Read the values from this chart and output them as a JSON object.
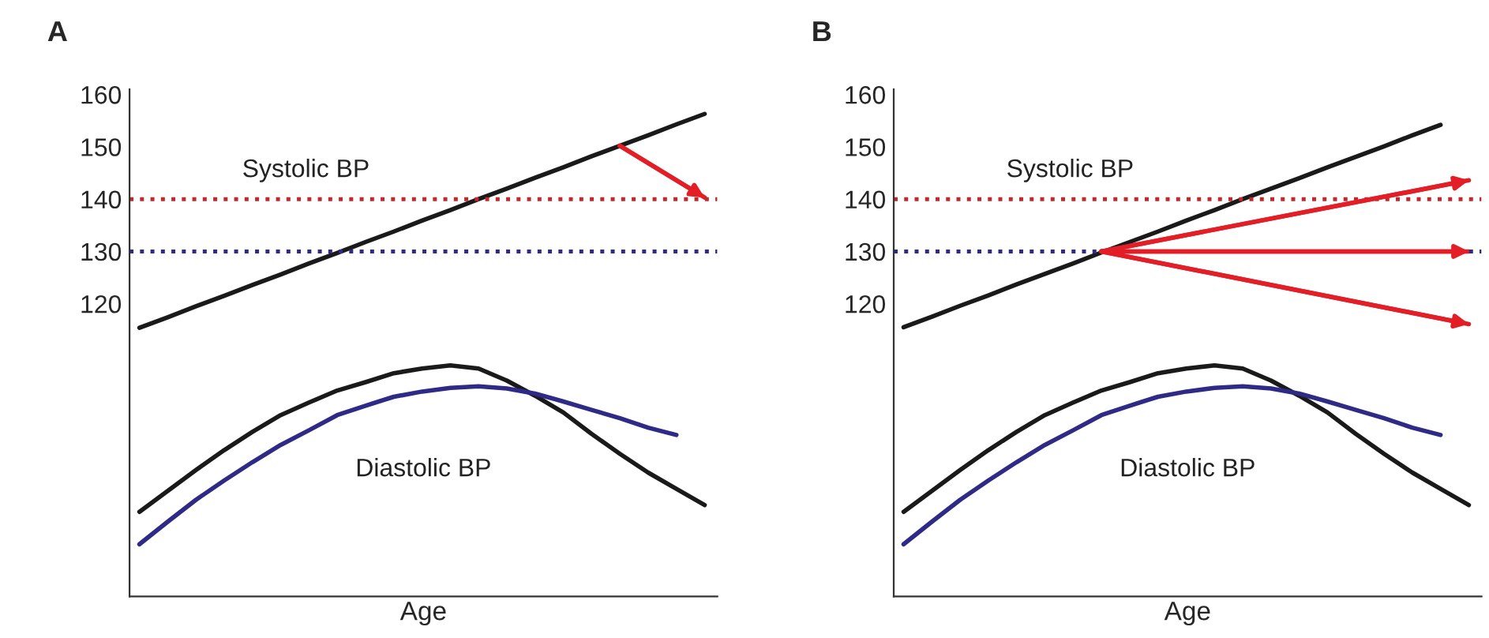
{
  "chart_data": [
    {
      "type": "line",
      "title": "A",
      "xlabel": "Age",
      "categories": [
        null,
        null,
        null,
        null,
        null,
        null,
        null,
        null,
        null,
        null,
        null,
        null,
        null,
        null,
        null,
        null,
        null,
        null,
        null,
        null,
        null
      ],
      "ylim": [
        64,
        161
      ],
      "yticks": [
        120,
        130,
        140,
        150,
        160
      ],
      "tick_labels": "y",
      "grid": false,
      "ref_lines": [
        {
          "axis": "y",
          "value": 140,
          "color": "#c0282d",
          "line_style": "dotted"
        },
        {
          "axis": "y",
          "value": 130,
          "color": "#2e2a85",
          "line_style": "dotted"
        }
      ],
      "annotations": [
        "Systolic BP",
        "Diastolic BP"
      ],
      "series": [
        {
          "color": "#1a1a1a",
          "values": [
            115.4,
            117.4,
            119.5,
            121.5,
            123.6,
            125.6,
            127.7,
            129.7,
            131.8,
            133.8,
            135.9,
            137.9,
            140.0,
            142.0,
            144.1,
            146.1,
            148.2,
            150.2,
            152.2,
            154.3,
            156.3
          ]
        },
        {
          "color": "#e41e26",
          "values": [
            null,
            null,
            null,
            null,
            null,
            null,
            null,
            null,
            null,
            null,
            null,
            null,
            null,
            null,
            null,
            null,
            null,
            150.2,
            null,
            null,
            140.3
          ]
        },
        {
          "color": "#1a1a1a",
          "values": [
            80.2,
            84.2,
            88.2,
            92.0,
            95.5,
            98.7,
            101.1,
            103.4,
            105.0,
            106.7,
            107.6,
            108.2,
            107.6,
            105.3,
            102.4,
            99.2,
            95.1,
            91.3,
            87.7,
            84.6,
            81.5
          ]
        },
        {
          "color": "#2e2a85",
          "values": [
            74.0,
            78.3,
            82.5,
            86.2,
            89.7,
            93.0,
            95.8,
            98.7,
            100.5,
            102.2,
            103.2,
            103.9,
            104.2,
            103.8,
            102.8,
            101.3,
            99.7,
            98.1,
            96.3,
            94.9,
            null
          ]
        }
      ]
    },
    {
      "type": "line",
      "title": "B",
      "xlabel": "Age",
      "categories": [
        null,
        null,
        null,
        null,
        null,
        null,
        null,
        null,
        null,
        null,
        null,
        null,
        null,
        null,
        null,
        null,
        null,
        null,
        null,
        null,
        null
      ],
      "ylim": [
        64,
        161
      ],
      "yticks": [
        120,
        130,
        140,
        150,
        160
      ],
      "tick_labels": "y",
      "grid": false,
      "ref_lines": [
        {
          "axis": "y",
          "value": 140,
          "color": "#c0282d",
          "line_style": "dotted"
        },
        {
          "axis": "y",
          "value": 130,
          "color": "#2e2a85",
          "line_style": "dotted"
        }
      ],
      "annotations": [
        "Systolic BP",
        "Diastolic BP"
      ],
      "series": [
        {
          "color": "#1a1a1a",
          "values": [
            115.5,
            117.5,
            119.6,
            121.6,
            123.7,
            125.7,
            127.7,
            129.8,
            131.8,
            133.8,
            135.9,
            137.9,
            140.0,
            142.0,
            144.0,
            146.1,
            148.1,
            150.1,
            152.2,
            154.2,
            null
          ]
        },
        {
          "color": "#e41e26",
          "values": [
            null,
            null,
            null,
            null,
            null,
            null,
            null,
            130,
            null,
            null,
            null,
            null,
            null,
            null,
            null,
            null,
            null,
            null,
            null,
            null,
            143.6
          ]
        },
        {
          "color": "#e41e26",
          "values": [
            null,
            null,
            null,
            null,
            null,
            null,
            null,
            130,
            null,
            null,
            null,
            null,
            null,
            null,
            null,
            null,
            null,
            null,
            null,
            null,
            130
          ]
        },
        {
          "color": "#e41e26",
          "values": [
            null,
            null,
            null,
            null,
            null,
            null,
            null,
            130,
            null,
            null,
            null,
            null,
            null,
            null,
            null,
            null,
            null,
            null,
            null,
            null,
            116.1
          ]
        },
        {
          "color": "#1a1a1a",
          "values": [
            80.2,
            84.2,
            88.2,
            92.0,
            95.5,
            98.7,
            101.1,
            103.4,
            105.0,
            106.7,
            107.6,
            108.2,
            107.6,
            105.3,
            102.4,
            99.2,
            95.1,
            91.3,
            87.7,
            84.6,
            81.5
          ]
        },
        {
          "color": "#2e2a85",
          "values": [
            74.0,
            78.3,
            82.5,
            86.2,
            89.7,
            93.0,
            95.8,
            98.7,
            100.5,
            102.2,
            103.2,
            103.9,
            104.2,
            103.8,
            102.8,
            101.3,
            99.7,
            98.1,
            96.3,
            94.9,
            null
          ]
        }
      ]
    }
  ]
}
